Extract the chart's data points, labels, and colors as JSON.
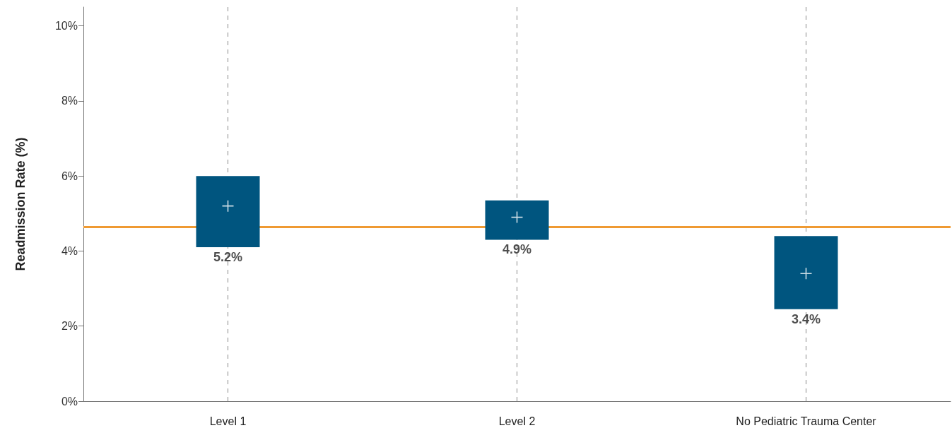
{
  "chart_data": {
    "type": "bar",
    "ylabel": "Readmission Rate (%)",
    "categories": [
      "Level 1",
      "Level 2",
      "No Pediatric Trauma Center"
    ],
    "series": [
      {
        "type": "bar",
        "color": "#00557f",
        "base": [
          4.1,
          4.3,
          2.45
        ],
        "values": [
          1.9,
          1.05,
          1.95
        ]
      },
      {
        "type": "scatter",
        "marker": "cross",
        "color": "#ffffff",
        "values": [
          5.2,
          4.9,
          3.4
        ],
        "value_labels": [
          "5.2%",
          "4.9%",
          "3.4%"
        ]
      }
    ],
    "ylim": [
      0,
      10.5
    ],
    "yticks": [
      {
        "value": 0,
        "label": "0%"
      },
      {
        "value": 2,
        "label": "2%"
      },
      {
        "value": 4,
        "label": "4%"
      },
      {
        "value": 6,
        "label": "6%"
      },
      {
        "value": 8,
        "label": "8%"
      },
      {
        "value": 10,
        "label": "10%"
      }
    ],
    "ref_lines": [
      {
        "axis": "y",
        "value": 4.65,
        "label": null,
        "color": "#ef9a32"
      }
    ],
    "grid": "x"
  }
}
